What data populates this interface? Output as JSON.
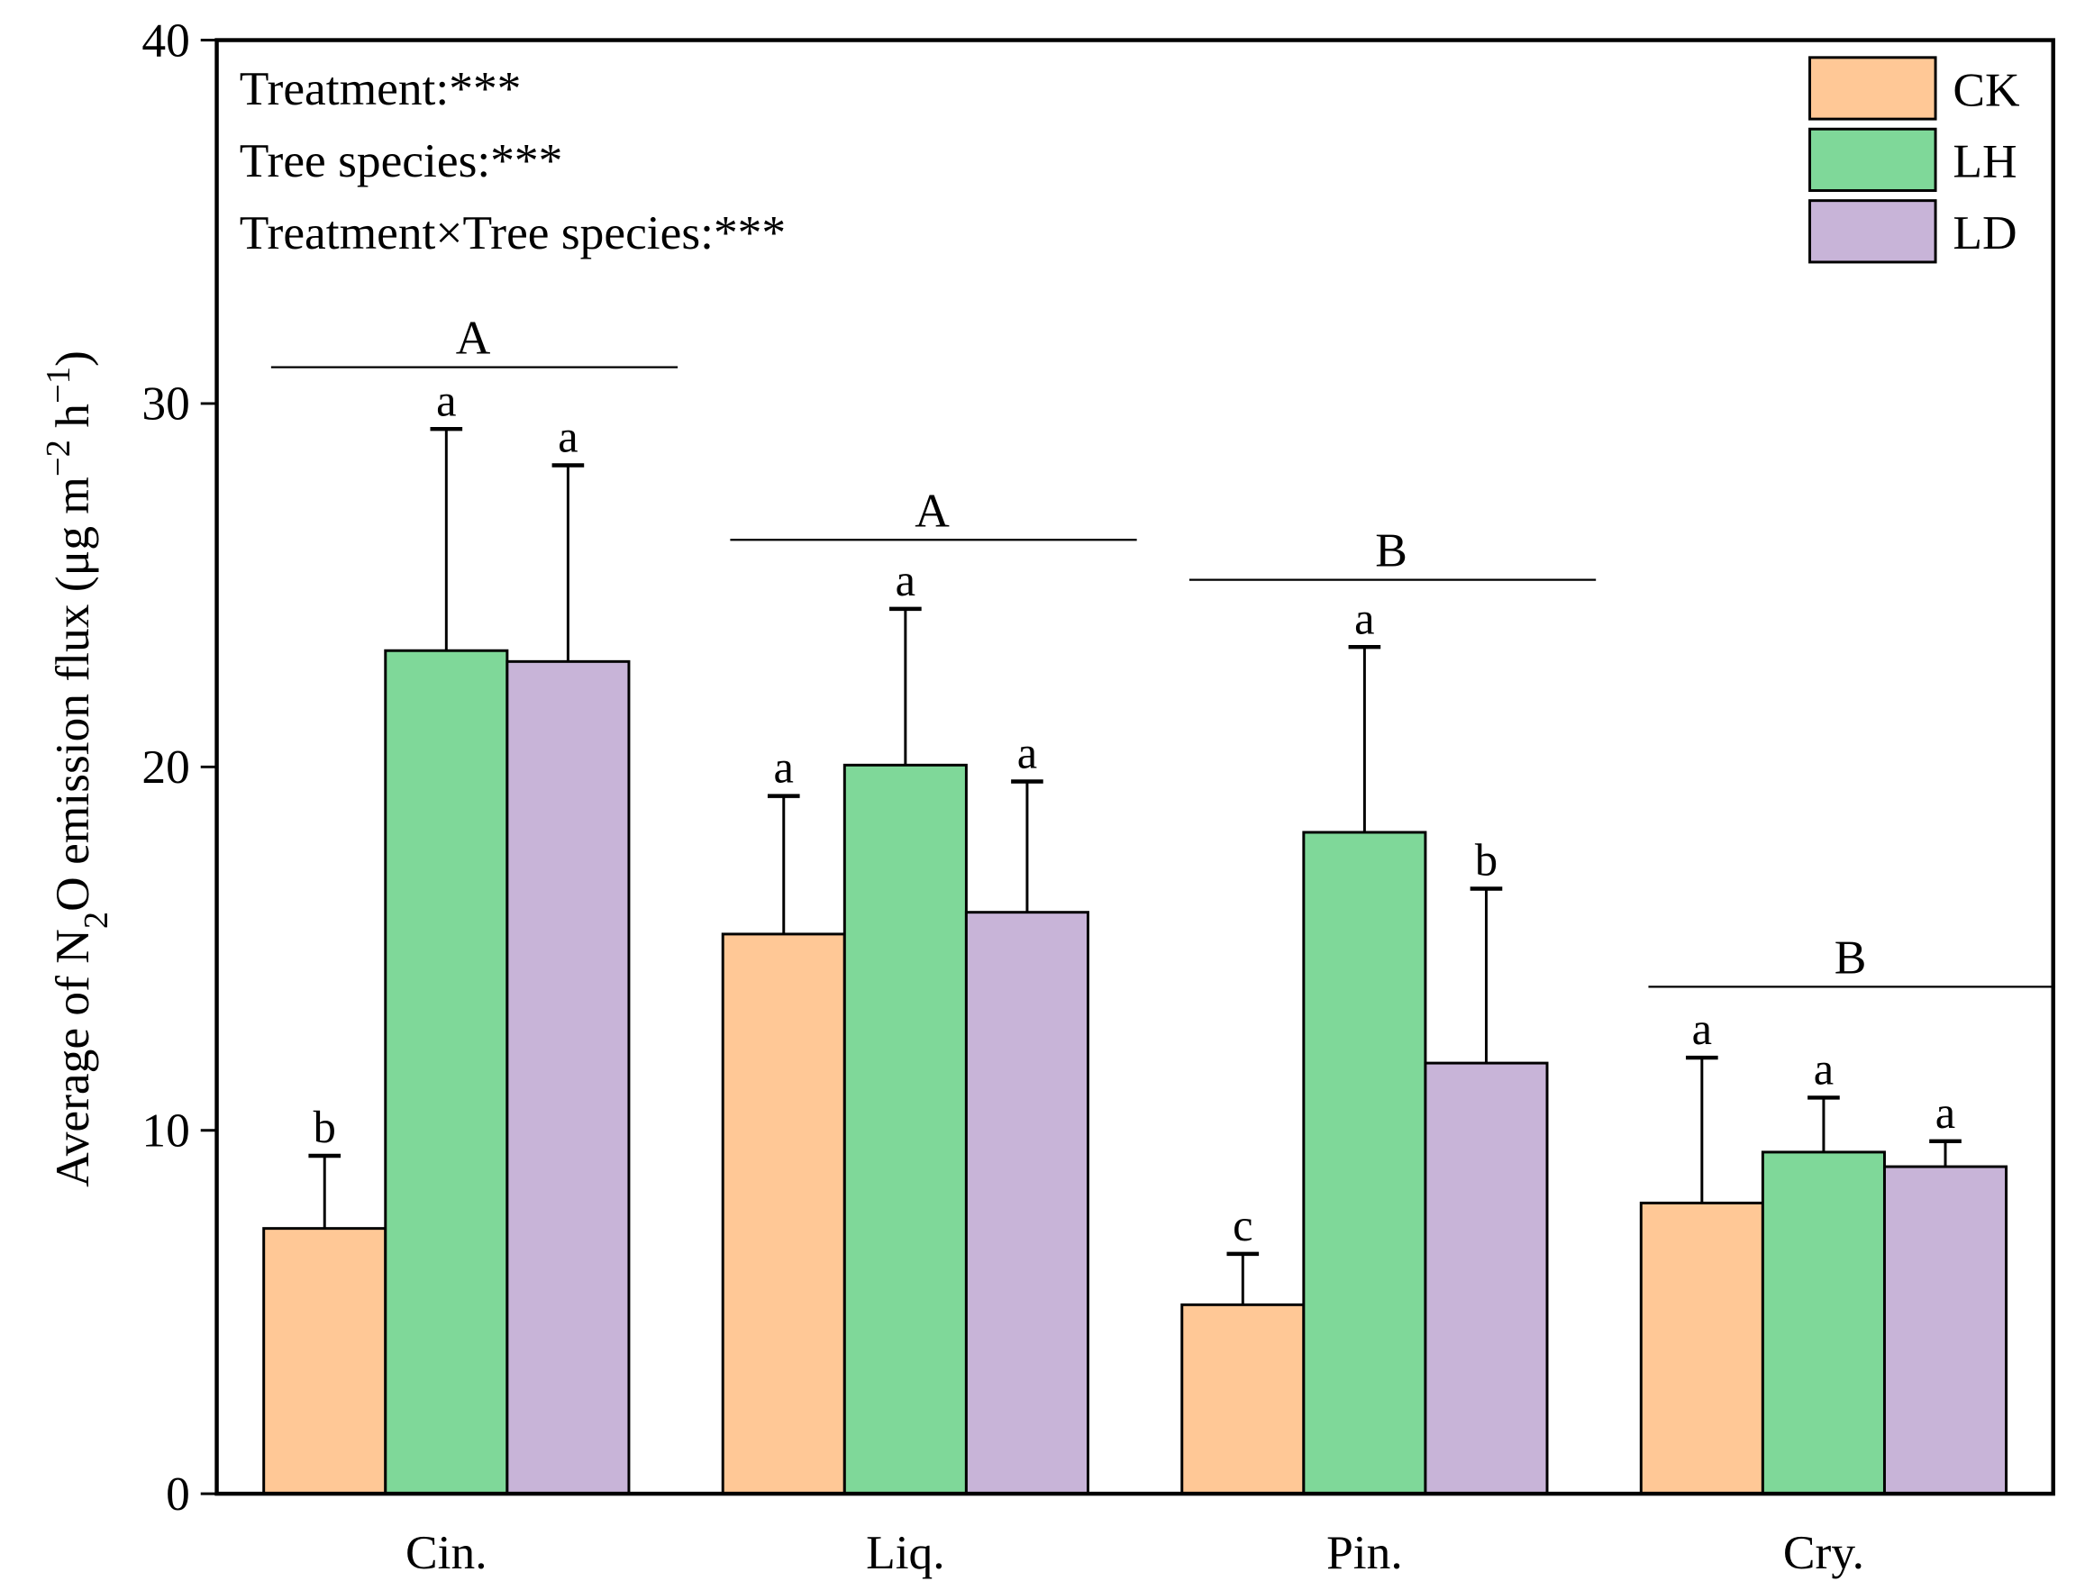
{
  "chart_data": {
    "type": "bar",
    "y_label_parts": [
      {
        "text": "Average of  N"
      },
      {
        "text": "2",
        "script": "sub"
      },
      {
        "text": "O emission flux (μg m"
      },
      {
        "text": "−2",
        "script": "sup"
      },
      {
        "text": " h"
      },
      {
        "text": "−1",
        "script": "sup"
      },
      {
        "text": ")"
      }
    ],
    "annotations": [
      "Treatment:***",
      "Tree species:***",
      "Treatment×Tree species:***"
    ],
    "categories": [
      "Cin.",
      "Liq.",
      "Pin.",
      "Cry."
    ],
    "series": [
      {
        "name": "CK",
        "color": "#FFC896",
        "values": [
          7.3,
          15.4,
          5.2,
          8.0
        ],
        "errors": [
          2.0,
          3.8,
          1.4,
          4.0
        ],
        "letters": [
          "b",
          "a",
          "c",
          "a"
        ]
      },
      {
        "name": "LH",
        "color": "#7FD899",
        "values": [
          23.2,
          20.05,
          18.2,
          9.4
        ],
        "errors": [
          6.1,
          4.3,
          5.1,
          1.5
        ],
        "letters": [
          "a",
          "a",
          "a",
          "a"
        ]
      },
      {
        "name": "LD",
        "color": "#C8B4D8",
        "values": [
          22.9,
          16.0,
          11.85,
          9.0
        ],
        "errors": [
          5.4,
          3.6,
          4.8,
          0.7
        ],
        "letters": [
          "a",
          "a",
          "b",
          "a"
        ]
      }
    ],
    "group_letters": [
      {
        "label": "A",
        "line_y": 31.0
      },
      {
        "label": "A",
        "line_y": 26.25
      },
      {
        "label": "B",
        "line_y": 25.15
      },
      {
        "label": "B",
        "line_y": 13.95
      }
    ],
    "ylim": [
      0,
      40
    ],
    "yticks": [
      0,
      10,
      20,
      30,
      40
    ],
    "legend": "upper-right"
  }
}
